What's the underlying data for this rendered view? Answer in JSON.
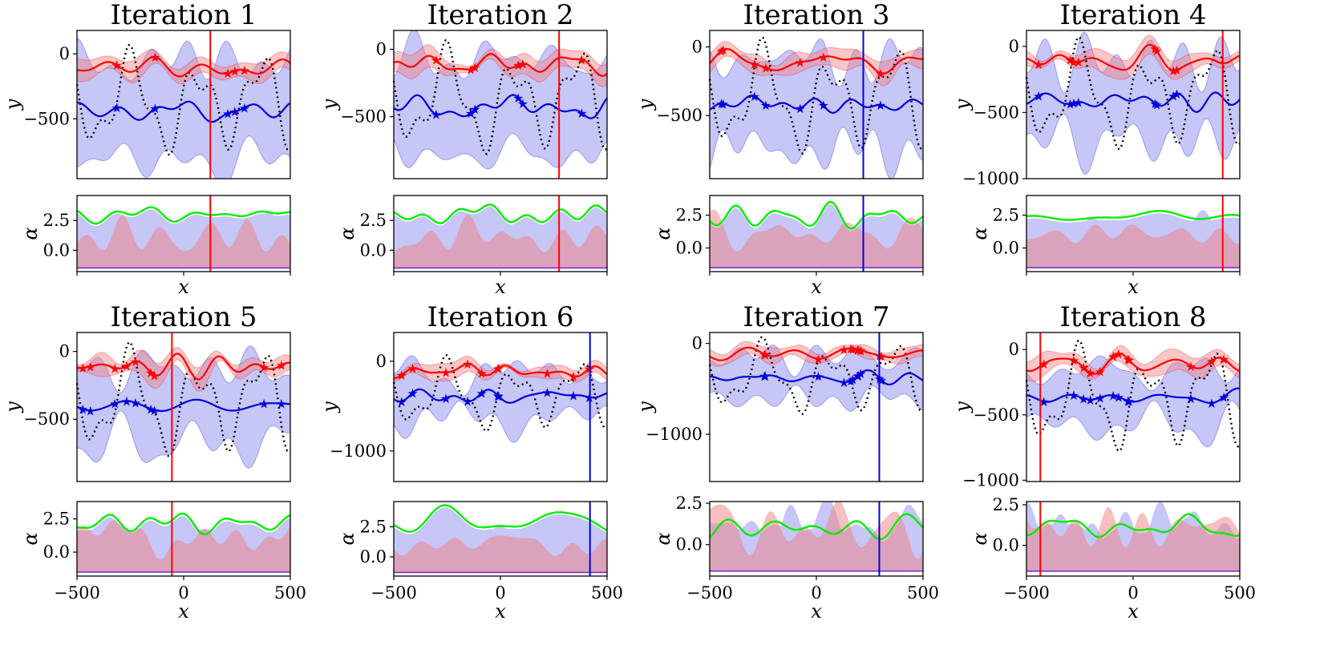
{
  "colors": {
    "red": "#ff0000",
    "blue": "#0000dd",
    "green": "#00ee00",
    "red_fill": "#f08080",
    "blue_fill": "#8080ee",
    "target": "#000000",
    "purple_line": "#7a1fd0"
  },
  "chart_data": [
    {
      "type": "line",
      "title": "Iteration 1",
      "xlabel": "x",
      "ylabel": "y",
      "alpha_label": "α",
      "xlim": [
        -500,
        500
      ],
      "ylim": [
        -960,
        180
      ],
      "yticks": [
        0,
        -500
      ],
      "alpha_ylim": [
        -1.8,
        4.6
      ],
      "alpha_yticks": [
        2.5,
        0.0
      ],
      "xticks_shown": false,
      "selected_x": 125,
      "selected_color": "red"
    },
    {
      "type": "line",
      "title": "Iteration 2",
      "xlabel": "x",
      "ylabel": "y",
      "alpha_label": "α",
      "xlim": [
        -500,
        500
      ],
      "ylim": [
        -960,
        140
      ],
      "yticks": [
        0,
        -500
      ],
      "alpha_ylim": [
        -1.8,
        4.6
      ],
      "alpha_yticks": [
        2.5,
        0.0
      ],
      "xticks_shown": false,
      "selected_x": 275,
      "selected_color": "red"
    },
    {
      "type": "line",
      "title": "Iteration 3",
      "xlabel": "x",
      "ylabel": "y",
      "alpha_label": "α",
      "xlim": [
        -500,
        500
      ],
      "ylim": [
        -960,
        120
      ],
      "yticks": [
        0,
        -500
      ],
      "alpha_ylim": [
        -1.8,
        4.0
      ],
      "alpha_yticks": [
        2.5,
        0.0
      ],
      "xticks_shown": false,
      "selected_x": 220,
      "selected_color": "blue"
    },
    {
      "type": "line",
      "title": "Iteration 4",
      "xlabel": "x",
      "ylabel": "y",
      "alpha_label": "α",
      "xlim": [
        -500,
        500
      ],
      "ylim": [
        -1000,
        120
      ],
      "yticks": [
        0,
        -500,
        -1000
      ],
      "alpha_ylim": [
        -1.8,
        4.0
      ],
      "alpha_yticks": [
        2.5,
        0.0
      ],
      "xticks_shown": false,
      "selected_x": 420,
      "selected_color": "red"
    },
    {
      "type": "line",
      "title": "Iteration 5",
      "xlabel": "x",
      "ylabel": "y",
      "alpha_label": "α",
      "xlim": [
        -500,
        500
      ],
      "ylim": [
        -960,
        140
      ],
      "yticks": [
        0,
        -500
      ],
      "alpha_ylim": [
        -1.8,
        3.8
      ],
      "alpha_yticks": [
        2.5,
        0.0
      ],
      "xticks": [
        -500,
        0,
        500
      ],
      "xticks_shown": true,
      "selected_x": -55,
      "selected_color": "red"
    },
    {
      "type": "line",
      "title": "Iteration 6",
      "xlabel": "x",
      "ylabel": "y",
      "alpha_label": "α",
      "xlim": [
        -500,
        500
      ],
      "ylim": [
        -1340,
        320
      ],
      "yticks": [
        0,
        -1000
      ],
      "alpha_ylim": [
        -1.6,
        4.6
      ],
      "alpha_yticks": [
        2.5,
        0.0
      ],
      "xticks": [
        -500,
        0,
        500
      ],
      "xticks_shown": true,
      "selected_x": 420,
      "selected_color": "blue"
    },
    {
      "type": "line",
      "title": "Iteration 7",
      "xlabel": "x",
      "ylabel": "y",
      "alpha_label": "α",
      "xlim": [
        -500,
        500
      ],
      "ylim": [
        -1520,
        120
      ],
      "yticks": [
        0,
        -1000
      ],
      "alpha_ylim": [
        -1.9,
        2.6
      ],
      "alpha_yticks": [
        2.5,
        0.0
      ],
      "xticks": [
        -500,
        0,
        500
      ],
      "xticks_shown": true,
      "selected_x": 295,
      "selected_color": "blue"
    },
    {
      "type": "line",
      "title": "Iteration 8",
      "xlabel": "x",
      "ylabel": "y",
      "alpha_label": "α",
      "xlim": [
        -500,
        500
      ],
      "ylim": [
        -1010,
        130
      ],
      "yticks": [
        0,
        -500,
        -1000
      ],
      "alpha_ylim": [
        -1.9,
        2.7
      ],
      "alpha_yticks": [
        2.5,
        0.0
      ],
      "xticks": [
        -500,
        0,
        500
      ],
      "xticks_shown": true,
      "selected_x": -435,
      "selected_color": "red"
    }
  ]
}
